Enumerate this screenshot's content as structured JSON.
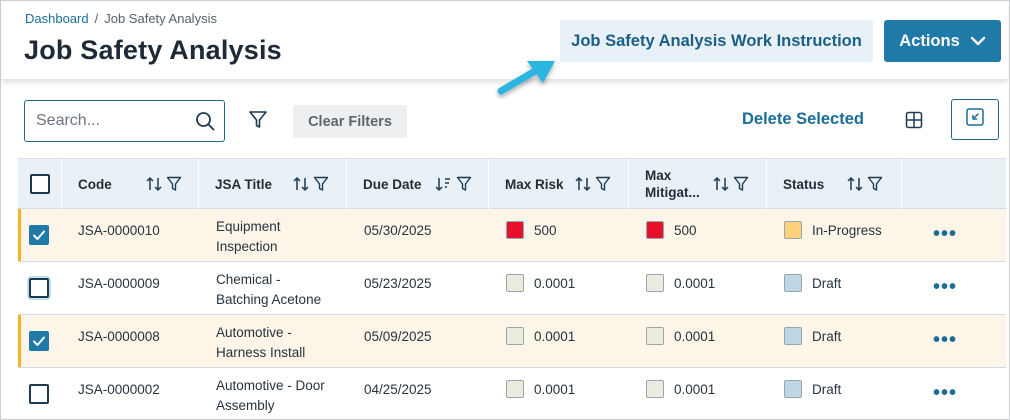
{
  "breadcrumb": {
    "home": "Dashboard",
    "separator": "/",
    "current": "Job Safety Analysis"
  },
  "page_title": "Job Safety Analysis",
  "header": {
    "work_instruction_label": "Job Safety Analysis Work Instruction",
    "actions_label": "Actions"
  },
  "toolbar": {
    "search_placeholder": "Search...",
    "clear_filters_label": "Clear Filters",
    "delete_selected_label": "Delete Selected"
  },
  "table": {
    "columns": [
      {
        "label": "Code"
      },
      {
        "label": "JSA Title"
      },
      {
        "label": "Due Date"
      },
      {
        "label": "Max Risk"
      },
      {
        "label": "Max Mitigat...",
        "label_line1": "Max",
        "label_line2": "Mitigat..."
      },
      {
        "label": "Status"
      }
    ],
    "rows": [
      {
        "selected": true,
        "code": "JSA-0000010",
        "title_line1": "Equipment",
        "title_line2": "Inspection",
        "due_date": "05/30/2025",
        "max_risk": "500",
        "max_risk_color": "#e8112d",
        "max_mitigated": "500",
        "max_mitigated_color": "#e8112d",
        "status": "In-Progress",
        "status_color": "#ffd27a"
      },
      {
        "selected": false,
        "code": "JSA-0000009",
        "title_line1": "Chemical -",
        "title_line2": "Batching Acetone",
        "due_date": "05/23/2025",
        "max_risk": "0.0001",
        "max_risk_color": "#e9ecdf",
        "max_mitigated": "0.0001",
        "max_mitigated_color": "#e9ecdf",
        "status": "Draft",
        "status_color": "#bdd7e6"
      },
      {
        "selected": true,
        "code": "JSA-0000008",
        "title_line1": "Automotive -",
        "title_line2": "Harness Install",
        "due_date": "05/09/2025",
        "max_risk": "0.0001",
        "max_risk_color": "#e9ecdf",
        "max_mitigated": "0.0001",
        "max_mitigated_color": "#e9ecdf",
        "status": "Draft",
        "status_color": "#bdd7e6"
      },
      {
        "selected": false,
        "code": "JSA-0000002",
        "title_line1": "Automotive - Door",
        "title_line2": "Assembly",
        "due_date": "04/25/2025",
        "max_risk": "0.0001",
        "max_risk_color": "#e9ecdf",
        "max_mitigated": "0.0001",
        "max_mitigated_color": "#e9ecdf",
        "status": "Draft",
        "status_color": "#bdd7e6"
      }
    ],
    "row_menu_label": "•••"
  },
  "colors": {
    "accent": "#1f7aa8",
    "link": "#1b6d98",
    "selected_row": "#fdf5e8",
    "selected_bar": "#f0b429",
    "callout_arrow": "#29b6e0"
  },
  "icons": [
    "search-icon",
    "filter-icon",
    "grid-icon",
    "collapse-icon",
    "sort-icon",
    "chevron-down-icon",
    "more-icon",
    "arrow-callout-icon"
  ]
}
